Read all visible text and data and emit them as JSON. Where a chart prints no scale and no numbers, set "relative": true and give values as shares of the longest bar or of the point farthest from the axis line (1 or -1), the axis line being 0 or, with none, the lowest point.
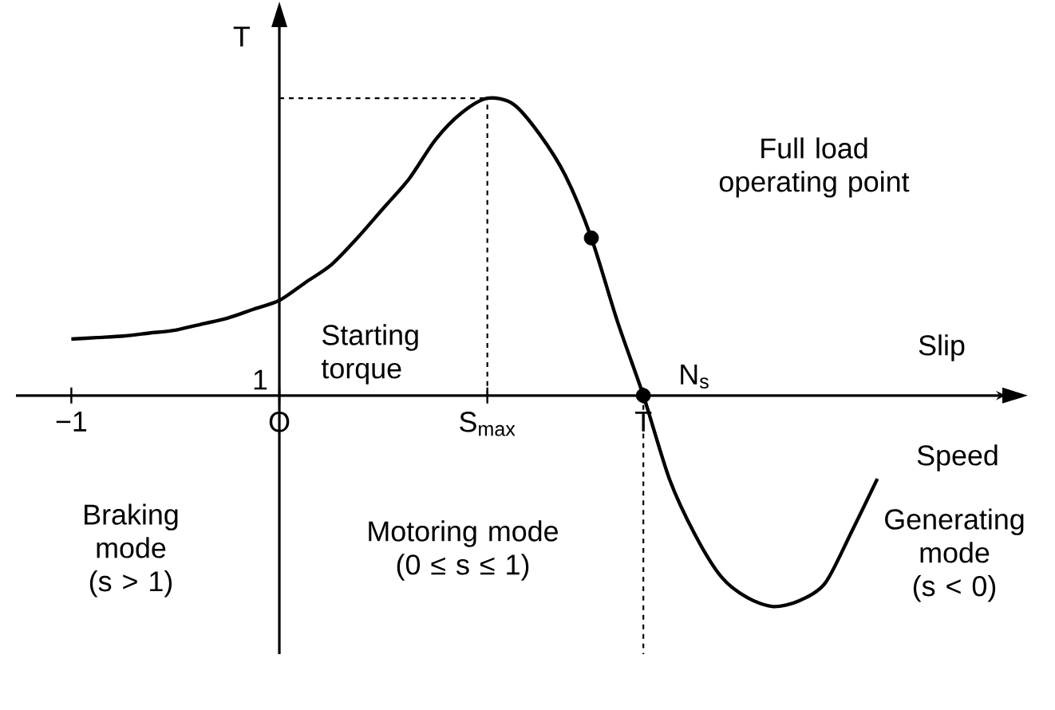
{
  "chart_data": {
    "type": "line",
    "relative": true,
    "ylabel": "T",
    "categories": [
      "−1",
      null,
      null,
      null,
      null,
      null,
      null,
      null,
      "O",
      null,
      null,
      null,
      null,
      null,
      null,
      null,
      "S$_{max}$",
      null,
      null,
      null,
      null,
      null,
      "T",
      null,
      null,
      null,
      null,
      null,
      null,
      null,
      null,
      null
    ],
    "series": [
      {
        "color": "#000000",
        "marker": "none",
        "values": [
          0.19,
          0.195,
          0.2,
          0.21,
          0.22,
          0.24,
          0.26,
          0.29,
          0.32,
          0.38,
          0.44,
          0.53,
          0.63,
          0.73,
          0.86,
          0.95,
          1.0,
          0.98,
          0.88,
          0.74,
          0.53,
          0.25,
          0,
          -0.28,
          -0.47,
          -0.61,
          -0.68,
          -0.71,
          -0.69,
          -0.63,
          -0.46,
          -0.28
        ]
      },
      {
        "type": "scatter",
        "color": "#000000",
        "marker": "circle",
        "values": [
          null,
          null,
          null,
          null,
          null,
          null,
          null,
          null,
          null,
          null,
          null,
          null,
          null,
          null,
          null,
          null,
          null,
          null,
          null,
          null,
          0.53,
          null,
          0,
          null,
          null,
          null,
          null,
          null,
          null,
          null,
          null,
          null
        ]
      }
    ],
    "ref_lines": [
      {
        "axis": "x",
        "value": "S$_{max}$",
        "line_style": "dashed"
      },
      {
        "axis": "x",
        "value": "T",
        "line_style": "dashed"
      },
      {
        "axis": "y",
        "value": 1.0,
        "line_style": "dashed"
      }
    ],
    "annotations": [
      "Full load operating point",
      "N$_{s}$",
      "Starting torque",
      "1",
      "Braking mode (s > 1)",
      "Motoring mode (0 ≤ s ≤ 1)",
      "Generating mode (s < 0)",
      "Slip",
      "Speed"
    ]
  }
}
